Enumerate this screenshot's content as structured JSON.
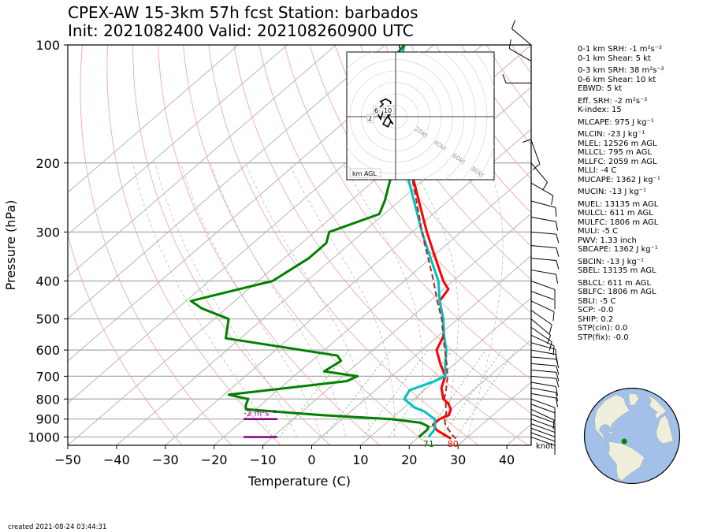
{
  "header": {
    "title_line1": "CPEX-AW 15-3km  57h fcst  Station: barbados",
    "title_line2": "Init: 2021082400  Valid: 202108260900 UTC"
  },
  "footer": {
    "created": "created 2021-08-24 03:44:31"
  },
  "indices": [
    "0-1 km SRH: -1 m²s⁻²",
    "0-1 km Shear: 5 kt",
    "0-3 km SRH: 38 m²s⁻²",
    "0-6 km Shear: 10 kt",
    "EBWD: 5 kt",
    "Eff. SRH: -2 m²s⁻²",
    "K-index: 15",
    "MLCAPE: 975 J kg⁻¹",
    "MLCIN: -23 J kg⁻¹",
    "MLEL: 12526 m AGL",
    "MLLCL: 795 m AGL",
    "MLLFC: 2059 m AGL",
    "MLLI: -4 C",
    "MUCAPE: 1362 J kg⁻¹",
    "MUCIN: -13 J kg⁻¹",
    "MUEL: 13135 m AGL",
    "MULCL: 611 m AGL",
    "MULFC: 1806 m AGL",
    "MULI: -5 C",
    "PWV: 1.33 inch",
    "SBCAPE: 1362 J kg⁻¹",
    "SBCIN: -13 J kg⁻¹",
    "SBEL: 13135 m AGL",
    "SBLCL: 611 m AGL",
    "SBLFC: 1806 m AGL",
    "SBLI: -5 C",
    "SCP: -0.0",
    "SHIP: 0.2",
    "STP(cin): 0.0",
    "STP(fix): -0.0"
  ],
  "chart_data": {
    "type": "line",
    "subtype": "skew-T log-p",
    "xlabel": "Temperature (C)",
    "ylabel": "Pressure (hPa)",
    "xlim": [
      -50,
      45
    ],
    "ylim": [
      1050,
      100
    ],
    "y_scale": "log",
    "x_ticks": [
      "−50",
      "−40",
      "−30",
      "−20",
      "−10",
      "0",
      "10",
      "20",
      "30",
      "40"
    ],
    "y_ticks": [
      "100",
      "200",
      "300",
      "400",
      "500",
      "600",
      "700",
      "800",
      "900",
      "1000"
    ],
    "series": [
      {
        "color": "#ff0000",
        "points": [
          [
            1010,
            27
          ],
          [
            990,
            25
          ],
          [
            960,
            22
          ],
          [
            930,
            20
          ],
          [
            900,
            20
          ],
          [
            880,
            21
          ],
          [
            850,
            20
          ],
          [
            820,
            18
          ],
          [
            800,
            16
          ],
          [
            750,
            13
          ],
          [
            700,
            11
          ],
          [
            650,
            7
          ],
          [
            600,
            3
          ],
          [
            550,
            1
          ],
          [
            500,
            -3
          ],
          [
            450,
            -8
          ],
          [
            420,
            -9
          ],
          [
            400,
            -12
          ],
          [
            350,
            -19
          ],
          [
            300,
            -27
          ],
          [
            250,
            -36
          ],
          [
            200,
            -47
          ],
          [
            150,
            -60
          ],
          [
            120,
            -70
          ],
          [
            100,
            -76
          ]
        ]
      },
      {
        "color": "#00c0c0",
        "points": [
          [
            1000,
            22
          ],
          [
            960,
            21.5
          ],
          [
            920,
            20
          ],
          [
            900,
            19
          ],
          [
            880,
            17
          ],
          [
            860,
            15
          ],
          [
            840,
            12
          ],
          [
            830,
            11
          ],
          [
            800,
            8
          ],
          [
            760,
            7
          ],
          [
            720,
            10
          ],
          [
            700,
            11
          ],
          [
            650,
            8
          ],
          [
            600,
            5
          ],
          [
            550,
            1
          ],
          [
            500,
            -3
          ],
          [
            450,
            -8
          ],
          [
            400,
            -13
          ],
          [
            350,
            -20
          ],
          [
            300,
            -28
          ],
          [
            250,
            -37
          ],
          [
            200,
            -48
          ],
          [
            150,
            -60
          ],
          [
            120,
            -70
          ],
          [
            100,
            -76
          ]
        ]
      },
      {
        "color": "#008000",
        "points": [
          [
            1000,
            20
          ],
          [
            960,
            20
          ],
          [
            940,
            19.5
          ],
          [
            920,
            17
          ],
          [
            900,
            10
          ],
          [
            880,
            -5
          ],
          [
            850,
            -22
          ],
          [
            830,
            -23
          ],
          [
            800,
            -24
          ],
          [
            780,
            -29
          ],
          [
            720,
            -8
          ],
          [
            700,
            -7
          ],
          [
            680,
            -15
          ],
          [
            640,
            -14
          ],
          [
            620,
            -16
          ],
          [
            560,
            -43
          ],
          [
            500,
            -47
          ],
          [
            470,
            -55
          ],
          [
            450,
            -59
          ],
          [
            400,
            -47
          ],
          [
            350,
            -45
          ],
          [
            320,
            -45
          ],
          [
            300,
            -47
          ],
          [
            270,
            -41
          ],
          [
            250,
            -43
          ],
          [
            200,
            -50
          ],
          [
            180,
            -54
          ],
          [
            150,
            -64
          ],
          [
            130,
            -73
          ],
          [
            100,
            -76
          ]
        ]
      },
      {
        "color": "#a52a2a",
        "dashed": true,
        "points": [
          [
            1010,
            28
          ],
          [
            990,
            26.5
          ],
          [
            960,
            24.5
          ],
          [
            930,
            22.5
          ],
          [
            900,
            21
          ],
          [
            870,
            20
          ],
          [
            850,
            19
          ],
          [
            820,
            17.5
          ],
          [
            800,
            16.2
          ],
          [
            750,
            14
          ],
          [
            700,
            11.5
          ],
          [
            650,
            8.3
          ],
          [
            600,
            4.7
          ],
          [
            550,
            0.8
          ],
          [
            500,
            -3.3
          ],
          [
            450,
            -8.5
          ],
          [
            400,
            -14
          ],
          [
            350,
            -20.5
          ],
          [
            300,
            -28
          ],
          [
            250,
            -36.5
          ],
          [
            200,
            -47
          ],
          [
            150,
            -60
          ],
          [
            100,
            -77
          ]
        ]
      }
    ],
    "annotations": {
      "surface_temp": "80",
      "surface_dewpoint": "71",
      "helicity_label": "-2 m²s⁻²",
      "wind_units": "knot"
    },
    "wind_barbs": [
      {
        "p": 1000,
        "dir": 110,
        "spd": 10
      },
      {
        "p": 975,
        "dir": 110,
        "spd": 10
      },
      {
        "p": 950,
        "dir": 110,
        "spd": 10
      },
      {
        "p": 925,
        "dir": 110,
        "spd": 10
      },
      {
        "p": 900,
        "dir": 110,
        "spd": 10
      },
      {
        "p": 875,
        "dir": 110,
        "spd": 10
      },
      {
        "p": 850,
        "dir": 115,
        "spd": 10
      },
      {
        "p": 825,
        "dir": 110,
        "spd": 10
      },
      {
        "p": 800,
        "dir": 110,
        "spd": 10
      },
      {
        "p": 775,
        "dir": 100,
        "spd": 10
      },
      {
        "p": 750,
        "dir": 100,
        "spd": 10
      },
      {
        "p": 725,
        "dir": 100,
        "spd": 10
      },
      {
        "p": 700,
        "dir": 95,
        "spd": 10
      },
      {
        "p": 675,
        "dir": 95,
        "spd": 10
      },
      {
        "p": 650,
        "dir": 95,
        "spd": 10
      },
      {
        "p": 625,
        "dir": 95,
        "spd": 10
      },
      {
        "p": 600,
        "dir": 100,
        "spd": 10
      },
      {
        "p": 575,
        "dir": 105,
        "spd": 10
      },
      {
        "p": 550,
        "dir": 115,
        "spd": 10
      },
      {
        "p": 525,
        "dir": 125,
        "spd": 10
      },
      {
        "p": 500,
        "dir": 130,
        "spd": 10
      },
      {
        "p": 475,
        "dir": 125,
        "spd": 10
      },
      {
        "p": 450,
        "dir": 115,
        "spd": 10
      },
      {
        "p": 425,
        "dir": 110,
        "spd": 10
      },
      {
        "p": 400,
        "dir": 110,
        "spd": 10
      },
      {
        "p": 375,
        "dir": 100,
        "spd": 10
      },
      {
        "p": 350,
        "dir": 95,
        "spd": 10
      },
      {
        "p": 325,
        "dir": 95,
        "spd": 10
      },
      {
        "p": 300,
        "dir": 95,
        "spd": 10
      },
      {
        "p": 275,
        "dir": 100,
        "spd": 10
      },
      {
        "p": 250,
        "dir": 105,
        "spd": 10
      },
      {
        "p": 225,
        "dir": 120,
        "spd": 10
      },
      {
        "p": 200,
        "dir": 140,
        "spd": 10
      },
      {
        "p": 175,
        "dir": 160,
        "spd": 10
      },
      {
        "p": 150,
        "dir": 180,
        "spd": 10
      },
      {
        "p": 125,
        "dir": 270,
        "spd": 10
      },
      {
        "p": 110,
        "dir": 300,
        "spd": 10
      },
      {
        "p": 100,
        "dir": 310,
        "spd": 10
      }
    ],
    "hodograph": {
      "ring_labels": [
        "20kt",
        "40kt",
        "60kt",
        "80kt"
      ],
      "height_labels": [
        "2",
        "6",
        "10"
      ],
      "corner_label": "km AGL",
      "points": [
        [
          -2,
          1
        ],
        [
          -4,
          -1
        ],
        [
          -5,
          -3
        ],
        [
          -3,
          -4
        ],
        [
          -2,
          -2
        ],
        [
          -1,
          -3
        ],
        [
          -3,
          0
        ],
        [
          -3,
          4
        ],
        [
          -5,
          2
        ],
        [
          -6,
          -1
        ],
        [
          -7,
          1
        ],
        [
          -7,
          3
        ],
        [
          -5,
          5
        ],
        [
          -6,
          6
        ],
        [
          -4,
          7
        ],
        [
          -2,
          6
        ],
        [
          -2,
          5
        ]
      ]
    },
    "globe": {
      "marker": {
        "lon": -59.6,
        "lat": 13.1
      },
      "center_lon": -50,
      "center_lat": 20
    }
  }
}
